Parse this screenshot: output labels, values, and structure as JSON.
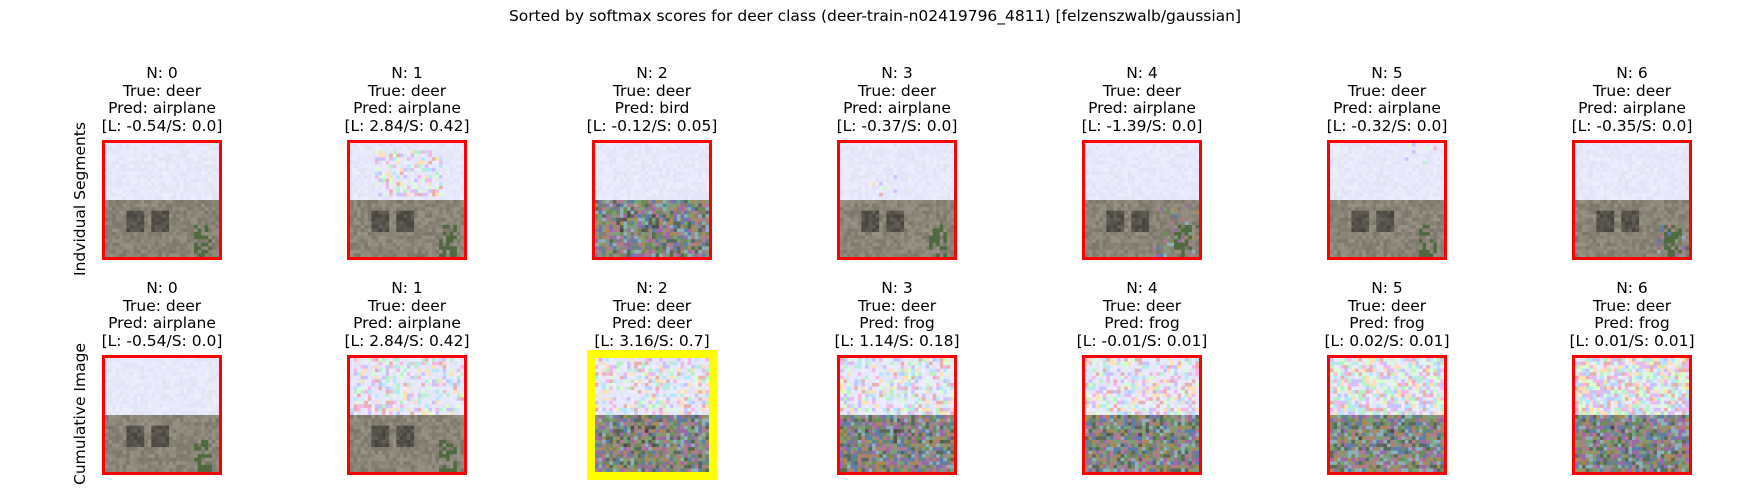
{
  "figure": {
    "title": "Sorted by softmax scores for deer class (deer-train-n02419796_4811) [felzenszwalb/gaussian]"
  },
  "rows": [
    {
      "label": "Indvidual Segments",
      "panels": [
        {
          "n": "N: 0",
          "true": "True: deer",
          "pred": "Pred: airplane",
          "score": "[L: -0.54/S: 0.0]",
          "highlight": false
        },
        {
          "n": "N: 1",
          "true": "True: deer",
          "pred": "Pred: airplane",
          "score": "[L: 2.84/S: 0.42]",
          "highlight": false
        },
        {
          "n": "N: 2",
          "true": "True: deer",
          "pred": "Pred: bird",
          "score": "[L: -0.12/S: 0.05]",
          "highlight": false
        },
        {
          "n": "N: 3",
          "true": "True: deer",
          "pred": "Pred: airplane",
          "score": "[L: -0.37/S: 0.0]",
          "highlight": false
        },
        {
          "n": "N: 4",
          "true": "True: deer",
          "pred": "Pred: airplane",
          "score": "[L: -1.39/S: 0.0]",
          "highlight": false
        },
        {
          "n": "N: 5",
          "true": "True: deer",
          "pred": "Pred: airplane",
          "score": "[L: -0.32/S: 0.0]",
          "highlight": false
        },
        {
          "n": "N: 6",
          "true": "True: deer",
          "pred": "Pred: airplane",
          "score": "[L: -0.35/S: 0.0]",
          "highlight": false
        }
      ]
    },
    {
      "label": "Cumulative Image",
      "panels": [
        {
          "n": "N: 0",
          "true": "True: deer",
          "pred": "Pred: airplane",
          "score": "[L: -0.54/S: 0.0]",
          "highlight": false
        },
        {
          "n": "N: 1",
          "true": "True: deer",
          "pred": "Pred: airplane",
          "score": "[L: 2.84/S: 0.42]",
          "highlight": false
        },
        {
          "n": "N: 2",
          "true": "True: deer",
          "pred": "Pred: deer",
          "score": "[L: 3.16/S: 0.7]",
          "highlight": true
        },
        {
          "n": "N: 3",
          "true": "True: deer",
          "pred": "Pred: frog",
          "score": "[L: 1.14/S: 0.18]",
          "highlight": false
        },
        {
          "n": "N: 4",
          "true": "True: deer",
          "pred": "Pred: frog",
          "score": "[L: -0.01/S: 0.01]",
          "highlight": false
        },
        {
          "n": "N: 5",
          "true": "True: deer",
          "pred": "Pred: frog",
          "score": "[L: 0.02/S: 0.01]",
          "highlight": false
        },
        {
          "n": "N: 6",
          "true": "True: deer",
          "pred": "Pred: frog",
          "score": "[L: 0.01/S: 0.01]",
          "highlight": false
        }
      ]
    }
  ],
  "colors": {
    "frame_default": "#ff0000",
    "frame_best": "#ffff00",
    "sky": "#e6e9f8",
    "ground": "#8a857c"
  }
}
